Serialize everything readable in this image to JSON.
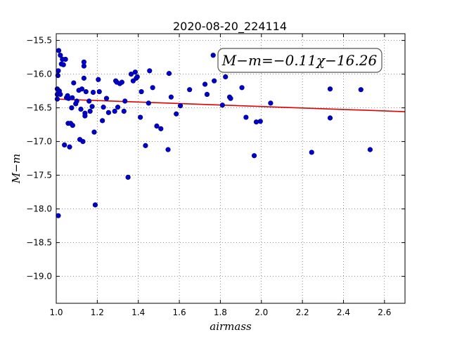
{
  "chart_data": {
    "type": "scatter",
    "title": "2020-08-20_224114",
    "xlabel": "airmass",
    "ylabel": "M−m",
    "xlim": [
      1.0,
      2.7
    ],
    "ylim": [
      -19.4,
      -15.4
    ],
    "y_inverted": true,
    "grid": true,
    "xticks": [
      1.0,
      1.2,
      1.4,
      1.6,
      1.8,
      2.0,
      2.2,
      2.4,
      2.6
    ],
    "xtick_labels": [
      "1.0",
      "1.2",
      "1.4",
      "1.6",
      "1.8",
      "2.0",
      "2.2",
      "2.4",
      "2.6"
    ],
    "yticks": [
      -15.5,
      -16.0,
      -16.5,
      -17.0,
      -17.5,
      -18.0,
      -18.5,
      -19.0
    ],
    "ytick_labels": [
      "−15.5",
      "−16.0",
      "−16.5",
      "−17.0",
      "−17.5",
      "−18.0",
      "−18.5",
      "−19.0"
    ],
    "annotation": "M−m=−0.11χ−16.26",
    "annotation_placement": "top-right",
    "fit": {
      "slope": -0.11,
      "intercept": -16.26,
      "color": "#e00000"
    },
    "point_color": "#0000cc",
    "points": [
      {
        "x": 1.005,
        "y": -16.37
      },
      {
        "x": 1.005,
        "y": -16.3
      },
      {
        "x": 1.005,
        "y": -16.22
      },
      {
        "x": 1.008,
        "y": -16.02
      },
      {
        "x": 1.01,
        "y": -15.95
      },
      {
        "x": 1.01,
        "y": -18.1
      },
      {
        "x": 1.012,
        "y": -15.65
      },
      {
        "x": 1.015,
        "y": -16.25
      },
      {
        "x": 1.02,
        "y": -16.3
      },
      {
        "x": 1.02,
        "y": -15.72
      },
      {
        "x": 1.025,
        "y": -15.85
      },
      {
        "x": 1.03,
        "y": -15.78
      },
      {
        "x": 1.035,
        "y": -15.86
      },
      {
        "x": 1.04,
        "y": -17.05
      },
      {
        "x": 1.045,
        "y": -15.78
      },
      {
        "x": 1.05,
        "y": -16.35
      },
      {
        "x": 1.055,
        "y": -16.32
      },
      {
        "x": 1.058,
        "y": -16.73
      },
      {
        "x": 1.06,
        "y": -16.36
      },
      {
        "x": 1.065,
        "y": -17.08
      },
      {
        "x": 1.07,
        "y": -16.73
      },
      {
        "x": 1.075,
        "y": -16.5
      },
      {
        "x": 1.078,
        "y": -16.35
      },
      {
        "x": 1.08,
        "y": -16.76
      },
      {
        "x": 1.085,
        "y": -16.13
      },
      {
        "x": 1.095,
        "y": -16.44
      },
      {
        "x": 1.1,
        "y": -16.4
      },
      {
        "x": 1.11,
        "y": -16.24
      },
      {
        "x": 1.115,
        "y": -16.97
      },
      {
        "x": 1.12,
        "y": -16.52
      },
      {
        "x": 1.125,
        "y": -16.22
      },
      {
        "x": 1.13,
        "y": -17.0
      },
      {
        "x": 1.135,
        "y": -15.82
      },
      {
        "x": 1.135,
        "y": -16.06
      },
      {
        "x": 1.135,
        "y": -15.88
      },
      {
        "x": 1.14,
        "y": -16.58
      },
      {
        "x": 1.14,
        "y": -16.62
      },
      {
        "x": 1.145,
        "y": -16.26
      },
      {
        "x": 1.16,
        "y": -16.4
      },
      {
        "x": 1.165,
        "y": -16.55
      },
      {
        "x": 1.175,
        "y": -16.48
      },
      {
        "x": 1.18,
        "y": -16.27
      },
      {
        "x": 1.185,
        "y": -16.86
      },
      {
        "x": 1.19,
        "y": -17.94
      },
      {
        "x": 1.205,
        "y": -16.08
      },
      {
        "x": 1.21,
        "y": -16.26
      },
      {
        "x": 1.225,
        "y": -16.69
      },
      {
        "x": 1.23,
        "y": -16.49
      },
      {
        "x": 1.245,
        "y": -16.36
      },
      {
        "x": 1.255,
        "y": -16.57
      },
      {
        "x": 1.285,
        "y": -16.55
      },
      {
        "x": 1.29,
        "y": -16.1
      },
      {
        "x": 1.295,
        "y": -16.12
      },
      {
        "x": 1.3,
        "y": -16.49
      },
      {
        "x": 1.31,
        "y": -16.14
      },
      {
        "x": 1.32,
        "y": -16.12
      },
      {
        "x": 1.33,
        "y": -16.55
      },
      {
        "x": 1.335,
        "y": -16.4
      },
      {
        "x": 1.35,
        "y": -17.53
      },
      {
        "x": 1.365,
        "y": -16.0
      },
      {
        "x": 1.375,
        "y": -16.1
      },
      {
        "x": 1.385,
        "y": -15.97
      },
      {
        "x": 1.39,
        "y": -16.06
      },
      {
        "x": 1.395,
        "y": -16.04
      },
      {
        "x": 1.41,
        "y": -16.64
      },
      {
        "x": 1.415,
        "y": -16.26
      },
      {
        "x": 1.435,
        "y": -17.06
      },
      {
        "x": 1.45,
        "y": -16.43
      },
      {
        "x": 1.455,
        "y": -15.95
      },
      {
        "x": 1.47,
        "y": -16.2
      },
      {
        "x": 1.49,
        "y": -16.77
      },
      {
        "x": 1.51,
        "y": -16.81
      },
      {
        "x": 1.545,
        "y": -17.12
      },
      {
        "x": 1.55,
        "y": -15.99
      },
      {
        "x": 1.56,
        "y": -16.34
      },
      {
        "x": 1.585,
        "y": -16.59
      },
      {
        "x": 1.605,
        "y": -16.47
      },
      {
        "x": 1.65,
        "y": -16.23
      },
      {
        "x": 1.725,
        "y": -16.15
      },
      {
        "x": 1.735,
        "y": -16.3
      },
      {
        "x": 1.765,
        "y": -15.72
      },
      {
        "x": 1.77,
        "y": -16.1
      },
      {
        "x": 1.81,
        "y": -16.46
      },
      {
        "x": 1.825,
        "y": -16.04
      },
      {
        "x": 1.845,
        "y": -16.34
      },
      {
        "x": 1.85,
        "y": -16.36
      },
      {
        "x": 1.905,
        "y": -16.2
      },
      {
        "x": 1.925,
        "y": -16.64
      },
      {
        "x": 1.965,
        "y": -17.21
      },
      {
        "x": 1.975,
        "y": -16.71
      },
      {
        "x": 1.995,
        "y": -16.7
      },
      {
        "x": 2.045,
        "y": -16.43
      },
      {
        "x": 2.245,
        "y": -17.16
      },
      {
        "x": 2.335,
        "y": -16.22
      },
      {
        "x": 2.335,
        "y": -16.65
      },
      {
        "x": 2.485,
        "y": -16.23
      },
      {
        "x": 2.53,
        "y": -17.12
      }
    ]
  }
}
